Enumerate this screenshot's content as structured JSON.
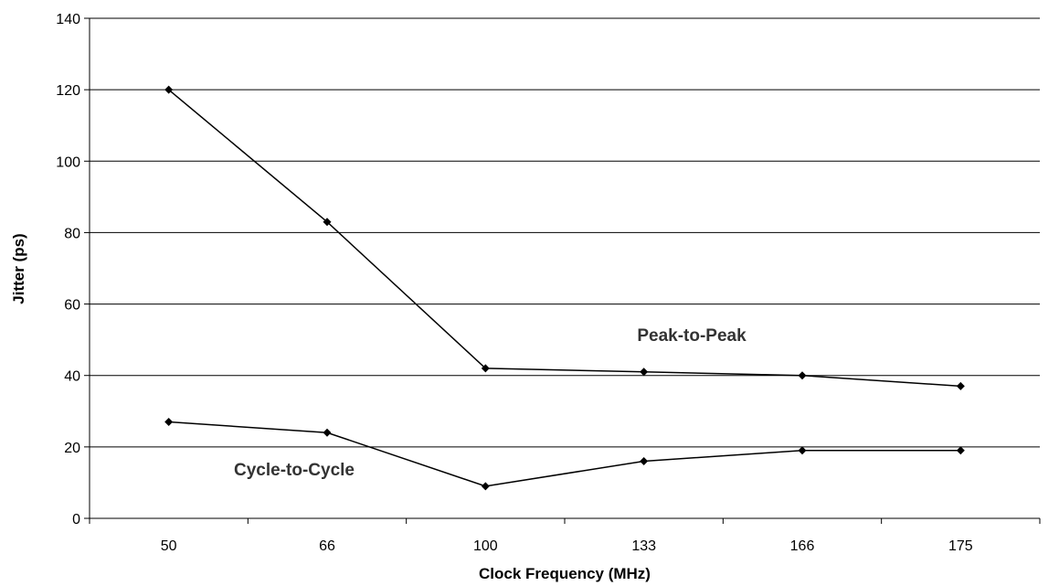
{
  "chart_data": {
    "type": "line",
    "categories": [
      "50",
      "66",
      "100",
      "133",
      "166",
      "175"
    ],
    "xlabel": "Clock Frequency (MHz)",
    "ylabel": "Jitter (ps)",
    "ylim": [
      0,
      140
    ],
    "yticks": [
      "0",
      "20",
      "40",
      "60",
      "80",
      "100",
      "120",
      "140"
    ],
    "grid": "horizontal",
    "series": [
      {
        "name": "Peak-to-Peak",
        "values": [
          120,
          83,
          42,
          41,
          40,
          37
        ]
      },
      {
        "name": "Cycle-to-Cycle",
        "values": [
          27,
          24,
          9,
          16,
          19,
          19
        ]
      }
    ],
    "colors": {
      "line": "#000000",
      "grid": "#000000",
      "label": "#333333"
    }
  }
}
